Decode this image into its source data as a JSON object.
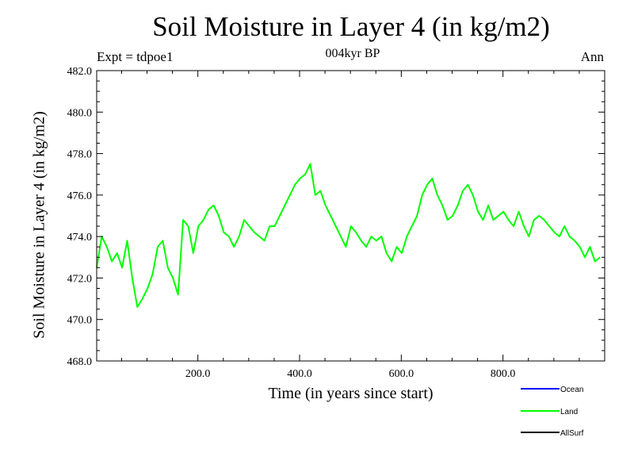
{
  "chart_data": {
    "type": "line",
    "title": "Soil Moisture in Layer 4 (in kg/m2)",
    "subtitle": "004kyr BP",
    "left_annotation": "Expt = tdpoe1",
    "right_annotation": "Ann",
    "xlabel": "Time (in years since start)",
    "ylabel": "Soil Moisture in Layer 4 (in kg/m2)",
    "xlim": [
      1,
      1000
    ],
    "ylim": [
      468.0,
      482.0
    ],
    "xticks": [
      200,
      400,
      600,
      800
    ],
    "xtick_labels": [
      "200.0",
      "400.0",
      "600.0",
      "800.0"
    ],
    "yticks": [
      468,
      470,
      472,
      474,
      476,
      478,
      480,
      482
    ],
    "ytick_labels": [
      "468.0",
      "470.0",
      "472.0",
      "474.0",
      "476.0",
      "478.0",
      "480.0",
      "482.0"
    ],
    "grid": false,
    "legend": [
      {
        "name": "Ocean",
        "color": "#0000ff"
      },
      {
        "name": "Land",
        "color": "#00ff00"
      },
      {
        "name": "AllSurf",
        "color": "#000000"
      }
    ],
    "series": [
      {
        "name": "Land",
        "color": "#00ff00",
        "x_start": 1,
        "x_step": 10,
        "values": [
          472.5,
          474.0,
          473.5,
          472.8,
          473.2,
          472.5,
          473.8,
          472.0,
          470.6,
          471.0,
          471.5,
          472.2,
          473.5,
          473.8,
          472.5,
          472.0,
          471.2,
          474.8,
          474.5,
          473.2,
          474.5,
          474.8,
          475.3,
          475.5,
          475.0,
          474.2,
          474.0,
          473.5,
          474.0,
          474.8,
          474.5,
          474.2,
          474.0,
          473.8,
          474.5,
          474.5,
          475.0,
          475.5,
          476.0,
          476.5,
          476.8,
          477.0,
          477.5,
          476.0,
          476.2,
          475.5,
          475.0,
          474.5,
          474.0,
          473.5,
          474.5,
          474.2,
          473.8,
          473.5,
          474.0,
          473.8,
          474.0,
          473.2,
          472.8,
          473.5,
          473.2,
          474.0,
          474.5,
          475.0,
          476.0,
          476.5,
          476.8,
          476.0,
          475.5,
          474.8,
          475.0,
          475.5,
          476.2,
          476.5,
          476.0,
          475.2,
          474.8,
          475.5,
          474.8,
          475.0,
          475.2,
          474.8,
          474.5,
          475.2,
          474.5,
          474.0,
          474.8,
          475.0,
          474.8,
          474.5,
          474.2,
          474.0,
          474.5,
          474.0,
          473.8,
          473.5,
          473.0,
          473.5,
          472.8,
          473.0
        ]
      },
      {
        "name": "Ocean",
        "color": "#0000ff",
        "values": []
      },
      {
        "name": "AllSurf",
        "color": "#000000",
        "values": []
      }
    ]
  }
}
